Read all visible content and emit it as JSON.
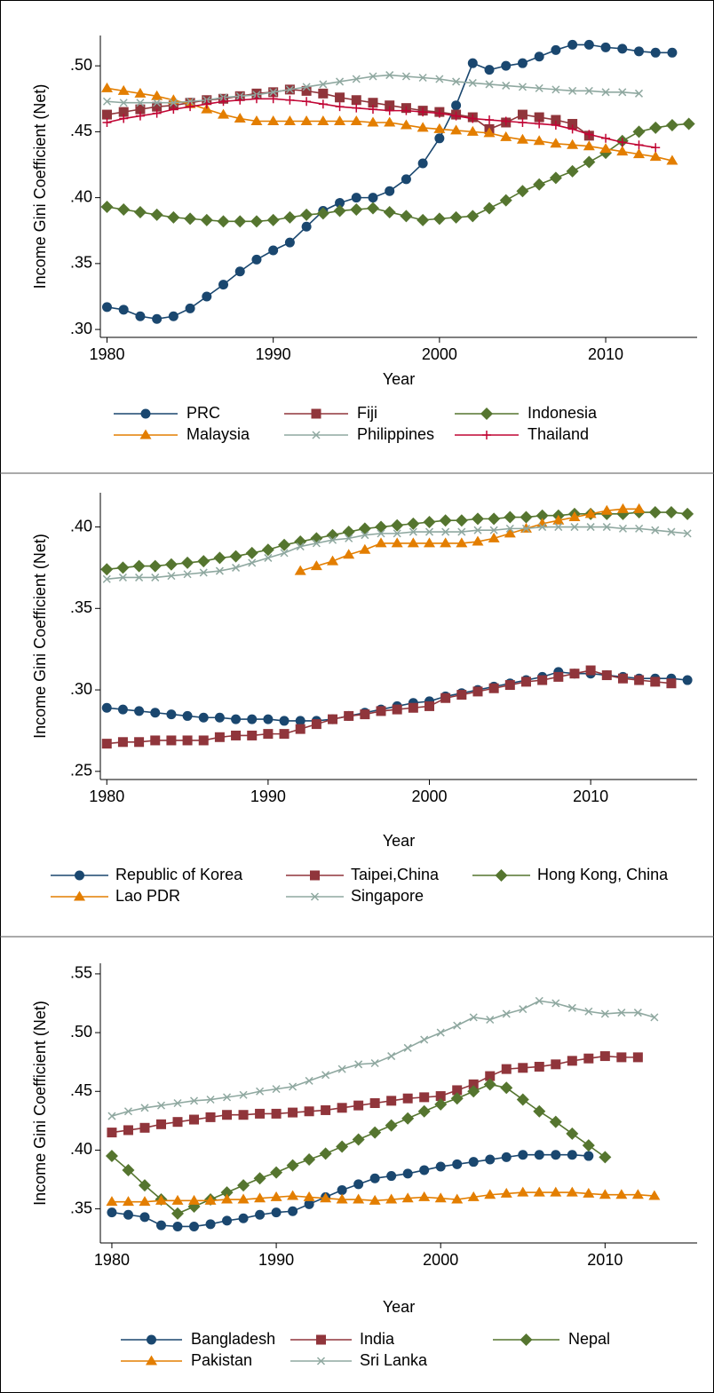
{
  "chart_data": [
    {
      "type": "line",
      "x_label": "Year",
      "y_label": "Income Gini Coefficient (Net)",
      "x": [
        1980,
        1981,
        1982,
        1983,
        1984,
        1985,
        1986,
        1987,
        1988,
        1989,
        1990,
        1991,
        1992,
        1993,
        1994,
        1995,
        1996,
        1997,
        1998,
        1999,
        2000,
        2001,
        2002,
        2003,
        2004,
        2005,
        2006,
        2007,
        2008,
        2009,
        2010,
        2011,
        2012,
        2013,
        2014,
        2015
      ],
      "xlim": [
        1979.6,
        2015.5
      ],
      "ylim": [
        0.294,
        0.523
      ],
      "xticks": [
        1980,
        1990,
        2000,
        2010
      ],
      "yticks": [
        {
          "value": 0.3,
          "label": ".30"
        },
        {
          "value": 0.35,
          "label": ".35"
        },
        {
          "value": 0.4,
          "label": ".40"
        },
        {
          "value": 0.45,
          "label": ".45"
        },
        {
          "value": 0.5,
          "label": ".50"
        }
      ],
      "series": [
        {
          "name": "PRC",
          "color": "#1a476f",
          "marker": "circle",
          "values": [
            0.317,
            0.315,
            0.31,
            0.308,
            0.31,
            0.316,
            0.325,
            0.334,
            0.344,
            0.353,
            0.36,
            0.366,
            0.378,
            0.39,
            0.396,
            0.4,
            0.4,
            0.405,
            0.414,
            0.426,
            0.445,
            0.47,
            0.502,
            0.497,
            0.5,
            0.502,
            0.507,
            0.512,
            0.516,
            0.516,
            0.514,
            0.513,
            0.511,
            0.51,
            0.51,
            null
          ]
        },
        {
          "name": "Fiji",
          "color": "#90353b",
          "marker": "square",
          "values": [
            0.463,
            0.465,
            0.467,
            0.469,
            0.47,
            0.472,
            0.474,
            0.475,
            0.477,
            0.479,
            0.48,
            0.482,
            0.481,
            0.479,
            0.476,
            0.474,
            0.472,
            0.47,
            0.468,
            0.466,
            0.465,
            0.463,
            0.461,
            0.452,
            0.457,
            0.463,
            0.461,
            0.459,
            0.456,
            0.447,
            null,
            null,
            null,
            null,
            null,
            null
          ]
        },
        {
          "name": "Indonesia",
          "color": "#55752f",
          "marker": "diamond",
          "values": [
            0.393,
            0.391,
            0.389,
            0.387,
            0.385,
            0.384,
            0.383,
            0.382,
            0.382,
            0.382,
            0.383,
            0.385,
            0.387,
            0.388,
            0.39,
            0.391,
            0.392,
            0.389,
            0.386,
            0.383,
            0.384,
            0.385,
            0.386,
            0.392,
            0.398,
            0.405,
            0.41,
            0.415,
            0.42,
            0.427,
            0.434,
            0.443,
            0.45,
            0.453,
            0.455,
            0.456
          ]
        },
        {
          "name": "Malaysia",
          "color": "#e37e00",
          "marker": "triangle",
          "values": [
            0.483,
            0.481,
            0.479,
            0.477,
            0.474,
            0.471,
            0.467,
            0.463,
            0.46,
            0.458,
            0.458,
            0.458,
            0.458,
            0.458,
            0.458,
            0.458,
            0.457,
            0.457,
            0.455,
            0.453,
            0.452,
            0.451,
            0.45,
            0.449,
            0.446,
            0.444,
            0.443,
            0.441,
            0.44,
            0.439,
            0.437,
            0.435,
            0.433,
            0.431,
            0.428,
            null
          ]
        },
        {
          "name": "Philippines",
          "color": "#8fa8a0",
          "marker": "x",
          "values": [
            0.473,
            0.472,
            0.472,
            0.472,
            0.472,
            0.473,
            0.474,
            0.476,
            0.477,
            0.478,
            0.48,
            0.482,
            0.484,
            0.486,
            0.488,
            0.49,
            0.492,
            0.493,
            0.492,
            0.491,
            0.49,
            0.488,
            0.487,
            0.486,
            0.485,
            0.484,
            0.483,
            0.482,
            0.481,
            0.481,
            0.48,
            0.48,
            0.479,
            null,
            null,
            null
          ]
        },
        {
          "name": "Thailand",
          "color": "#c10534",
          "marker": "plus",
          "values": [
            0.457,
            0.46,
            0.462,
            0.464,
            0.467,
            0.469,
            0.471,
            0.473,
            0.474,
            0.475,
            0.475,
            0.474,
            0.473,
            0.471,
            0.469,
            0.468,
            0.467,
            0.466,
            0.466,
            0.465,
            0.464,
            0.462,
            0.46,
            0.459,
            0.458,
            0.457,
            0.456,
            0.455,
            0.452,
            0.448,
            0.445,
            0.442,
            0.44,
            0.438,
            null,
            null
          ]
        }
      ]
    },
    {
      "type": "line",
      "x_label": "Year",
      "y_label": "Income Gini Coefficient (Net)",
      "x": [
        1980,
        1981,
        1982,
        1983,
        1984,
        1985,
        1986,
        1987,
        1988,
        1989,
        1990,
        1991,
        1992,
        1993,
        1994,
        1995,
        1996,
        1997,
        1998,
        1999,
        2000,
        2001,
        2002,
        2003,
        2004,
        2005,
        2006,
        2007,
        2008,
        2009,
        2010,
        2011,
        2012,
        2013,
        2014,
        2015,
        2016
      ],
      "xlim": [
        1979.6,
        2016.6
      ],
      "ylim": [
        0.245,
        0.421
      ],
      "xticks": [
        1980,
        1990,
        2000,
        2010
      ],
      "yticks": [
        {
          "value": 0.25,
          "label": ".25"
        },
        {
          "value": 0.3,
          "label": ".30"
        },
        {
          "value": 0.35,
          "label": ".35"
        },
        {
          "value": 0.4,
          "label": ".40"
        }
      ],
      "series": [
        {
          "name": "Republic of Korea",
          "color": "#1a476f",
          "marker": "circle",
          "values": [
            0.289,
            0.288,
            0.287,
            0.286,
            0.285,
            0.284,
            0.283,
            0.283,
            0.282,
            0.282,
            0.282,
            0.281,
            0.281,
            0.281,
            0.282,
            0.284,
            0.286,
            0.288,
            0.29,
            0.292,
            0.293,
            0.296,
            0.298,
            0.3,
            0.302,
            0.304,
            0.306,
            0.308,
            0.311,
            0.31,
            0.31,
            0.309,
            0.308,
            0.307,
            0.307,
            0.307,
            0.306
          ]
        },
        {
          "name": "Taipei,China",
          "color": "#90353b",
          "marker": "square",
          "values": [
            0.267,
            0.268,
            0.268,
            0.269,
            0.269,
            0.269,
            0.269,
            0.271,
            0.272,
            0.272,
            0.273,
            0.273,
            0.276,
            0.279,
            0.282,
            0.284,
            0.285,
            0.287,
            0.288,
            0.289,
            0.29,
            0.295,
            0.297,
            0.299,
            0.301,
            0.303,
            0.305,
            0.306,
            0.308,
            0.31,
            0.312,
            0.309,
            0.307,
            0.306,
            0.305,
            0.304,
            null
          ]
        },
        {
          "name": "Hong Kong, China",
          "color": "#55752f",
          "marker": "diamond",
          "values": [
            0.374,
            0.375,
            0.376,
            0.376,
            0.377,
            0.378,
            0.379,
            0.381,
            0.382,
            0.384,
            0.386,
            0.389,
            0.391,
            0.393,
            0.395,
            0.397,
            0.399,
            0.4,
            0.401,
            0.402,
            0.403,
            0.404,
            0.404,
            0.405,
            0.405,
            0.406,
            0.406,
            0.407,
            0.407,
            0.408,
            0.408,
            0.408,
            0.408,
            0.409,
            0.409,
            0.409,
            0.408
          ]
        },
        {
          "name": "Lao PDR",
          "color": "#e37e00",
          "marker": "triangle",
          "values": [
            null,
            null,
            null,
            null,
            null,
            null,
            null,
            null,
            null,
            null,
            null,
            null,
            0.373,
            0.376,
            0.379,
            0.383,
            0.386,
            0.39,
            0.39,
            0.39,
            0.39,
            0.39,
            0.39,
            0.391,
            0.393,
            0.396,
            0.399,
            0.402,
            0.404,
            0.406,
            0.408,
            0.41,
            0.411,
            0.411,
            null,
            null,
            null
          ]
        },
        {
          "name": "Singapore",
          "color": "#8fa8a0",
          "marker": "x",
          "values": [
            0.368,
            0.369,
            0.369,
            0.369,
            0.37,
            0.371,
            0.372,
            0.373,
            0.375,
            0.378,
            0.381,
            0.384,
            0.388,
            0.39,
            0.392,
            0.393,
            0.395,
            0.396,
            0.396,
            0.397,
            0.397,
            0.397,
            0.397,
            0.398,
            0.398,
            0.399,
            0.399,
            0.4,
            0.4,
            0.4,
            0.4,
            0.4,
            0.399,
            0.399,
            0.398,
            0.397,
            0.396
          ]
        }
      ]
    },
    {
      "type": "line",
      "x_label": "Year",
      "y_label": "Income Gini Coefficient (Net)",
      "x": [
        1980,
        1981,
        1982,
        1983,
        1984,
        1985,
        1986,
        1987,
        1988,
        1989,
        1990,
        1991,
        1992,
        1993,
        1994,
        1995,
        1996,
        1997,
        1998,
        1999,
        2000,
        2001,
        2002,
        2003,
        2004,
        2005,
        2006,
        2007,
        2008,
        2009,
        2010,
        2011,
        2012,
        2013
      ],
      "xlim": [
        1979.3,
        2015.6
      ],
      "ylim": [
        0.321,
        0.559
      ],
      "xticks": [
        1980,
        1990,
        2000,
        2010
      ],
      "yticks": [
        {
          "value": 0.35,
          "label": ".35"
        },
        {
          "value": 0.4,
          "label": ".40"
        },
        {
          "value": 0.45,
          "label": ".45"
        },
        {
          "value": 0.5,
          "label": ".50"
        },
        {
          "value": 0.55,
          "label": ".55"
        }
      ],
      "series": [
        {
          "name": "Bangladesh",
          "color": "#1a476f",
          "marker": "circle",
          "values": [
            0.347,
            0.345,
            0.343,
            0.336,
            0.335,
            0.335,
            0.337,
            0.34,
            0.342,
            0.345,
            0.347,
            0.348,
            0.354,
            0.36,
            0.366,
            0.371,
            0.376,
            0.378,
            0.38,
            0.383,
            0.386,
            0.388,
            0.39,
            0.392,
            0.394,
            0.396,
            0.396,
            0.396,
            0.396,
            0.395,
            null,
            null,
            null,
            null
          ]
        },
        {
          "name": "India",
          "color": "#90353b",
          "marker": "square",
          "values": [
            0.415,
            0.417,
            0.419,
            0.422,
            0.424,
            0.426,
            0.428,
            0.43,
            0.43,
            0.431,
            0.431,
            0.432,
            0.433,
            0.434,
            0.436,
            0.438,
            0.44,
            0.442,
            0.444,
            0.445,
            0.446,
            0.451,
            0.456,
            0.463,
            0.469,
            0.47,
            0.471,
            0.473,
            0.476,
            0.478,
            0.48,
            0.479,
            0.479,
            null
          ]
        },
        {
          "name": "Nepal",
          "color": "#55752f",
          "marker": "diamond",
          "values": [
            0.395,
            0.383,
            0.37,
            0.358,
            0.346,
            0.352,
            0.358,
            0.364,
            0.37,
            0.376,
            0.381,
            0.387,
            0.392,
            0.397,
            0.403,
            0.409,
            0.415,
            0.421,
            0.427,
            0.433,
            0.439,
            0.444,
            0.45,
            0.456,
            0.453,
            0.443,
            0.433,
            0.424,
            0.414,
            0.404,
            0.394,
            null,
            null,
            null
          ]
        },
        {
          "name": "Pakistan",
          "color": "#e37e00",
          "marker": "triangle",
          "values": [
            0.356,
            0.356,
            0.356,
            0.357,
            0.357,
            0.357,
            0.357,
            0.358,
            0.358,
            0.359,
            0.36,
            0.361,
            0.36,
            0.359,
            0.358,
            0.358,
            0.357,
            0.358,
            0.359,
            0.36,
            0.359,
            0.358,
            0.36,
            0.362,
            0.363,
            0.364,
            0.364,
            0.364,
            0.364,
            0.363,
            0.362,
            0.362,
            0.362,
            0.361
          ]
        },
        {
          "name": "Sri Lanka",
          "color": "#8fa8a0",
          "marker": "x",
          "values": [
            0.429,
            0.433,
            0.436,
            0.438,
            0.44,
            0.442,
            0.443,
            0.445,
            0.447,
            0.45,
            0.452,
            0.454,
            0.459,
            0.464,
            0.469,
            0.473,
            0.474,
            0.48,
            0.487,
            0.494,
            0.5,
            0.506,
            0.513,
            0.511,
            0.516,
            0.52,
            0.527,
            0.525,
            0.521,
            0.518,
            0.516,
            0.517,
            0.517,
            0.513
          ]
        }
      ]
    }
  ]
}
